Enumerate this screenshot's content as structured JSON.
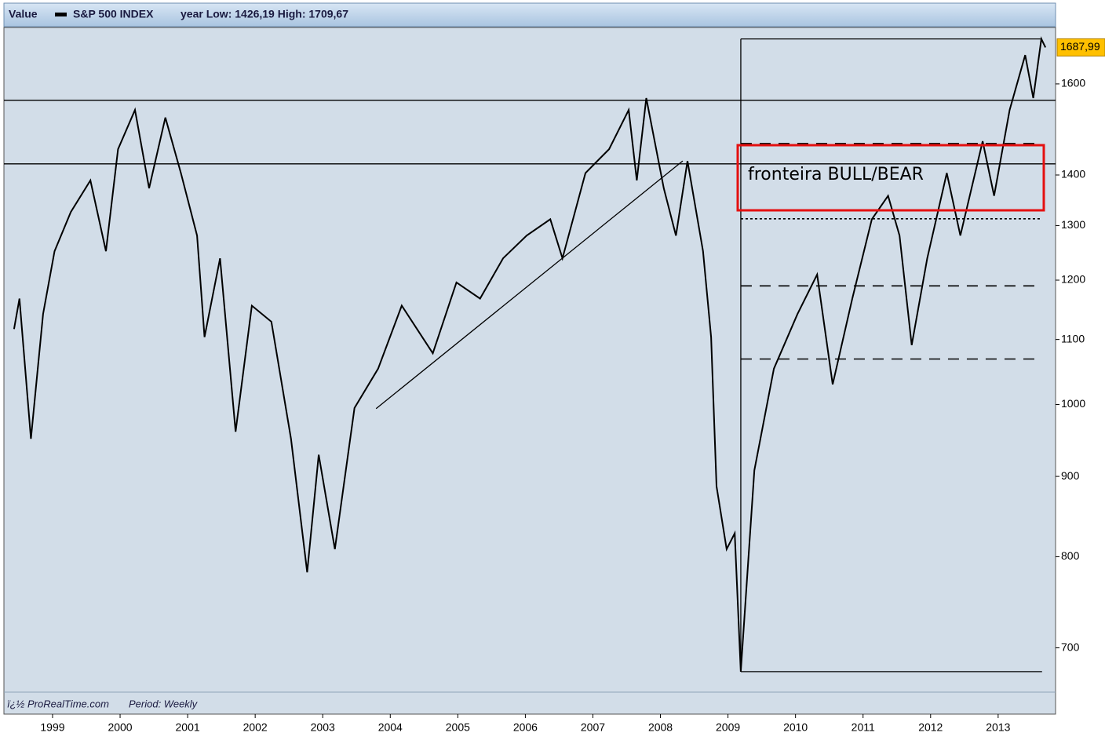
{
  "chart_data": {
    "type": "line",
    "header_label": "Value",
    "subtitle": "year Low: 1426,19 High: 1709,67",
    "footer": "ï¿½ ProRealTime.com",
    "period": "Period: Weekly",
    "annotation": "fronteira BULL/BEAR",
    "x": [
      1998.43,
      1998.51,
      1998.68,
      1998.86,
      1999.03,
      1999.27,
      1999.56,
      1999.79,
      1999.97,
      2000.22,
      2000.43,
      2000.67,
      2000.9,
      2001.14,
      2001.25,
      2001.48,
      2001.71,
      2001.95,
      2002.24,
      2002.53,
      2002.77,
      2002.94,
      2003.18,
      2003.47,
      2003.82,
      2004.17,
      2004.63,
      2004.98,
      2005.33,
      2005.67,
      2006.02,
      2006.37,
      2006.55,
      2006.89,
      2007.24,
      2007.53,
      2007.65,
      2007.79,
      2008.05,
      2008.23,
      2008.4,
      2008.63,
      2008.75,
      2008.83,
      2008.98,
      2009.1,
      2009.19,
      2009.39,
      2009.68,
      2010.03,
      2010.32,
      2010.55,
      2010.84,
      2011.13,
      2011.37,
      2011.54,
      2011.72,
      2011.95,
      2012.24,
      2012.44,
      2012.77,
      2012.94,
      2013.17,
      2013.4,
      2013.52,
      2013.64,
      2013.7
    ],
    "series": [
      {
        "name": "S&P 500 INDEX",
        "color": "#000000",
        "values": [
          1117,
          1168,
          951,
          1142,
          1252,
          1326,
          1389,
          1252,
          1454,
          1540,
          1373,
          1523,
          1404,
          1281,
          1104,
          1239,
          961,
          1156,
          1129,
          951,
          782,
          929,
          809,
          995,
          1054,
          1156,
          1078,
          1196,
          1168,
          1239,
          1281,
          1312,
          1239,
          1404,
          1454,
          1540,
          1389,
          1567,
          1373,
          1281,
          1429,
          1252,
          1104,
          887,
          809,
          828,
          676,
          908,
          1054,
          1142,
          1210,
          1030,
          1168,
          1312,
          1358,
          1281,
          1091,
          1239,
          1404,
          1281,
          1471,
          1358,
          1540,
          1669,
          1567,
          1709,
          1688
        ]
      }
    ],
    "last_price": {
      "value": 1687.99,
      "label": "1687,99"
    },
    "segments": [
      {
        "x": [
          1998.28,
          2013.85
        ],
        "y": [
          1562,
          1562
        ],
        "dash": "solid"
      },
      {
        "x": [
          1998.28,
          2013.85
        ],
        "y": [
          1423,
          1423
        ],
        "dash": "solid"
      },
      {
        "x": [
          2009.19,
          2013.65
        ],
        "y": [
          1709,
          1709
        ],
        "dash": "solid"
      },
      {
        "x": [
          2009.19,
          2013.65
        ],
        "y": [
          676,
          676
        ],
        "dash": "solid"
      },
      {
        "x": [
          2009.19,
          2009.19
        ],
        "y": [
          676,
          1709
        ],
        "dash": "solid"
      },
      {
        "x": [
          2003.79,
          2008.33
        ],
        "y": [
          994,
          1429
        ],
        "dash": "solid"
      },
      {
        "x": [
          2009.19,
          2013.65
        ],
        "y": [
          1466,
          1466
        ],
        "dash": "dashed"
      },
      {
        "x": [
          2009.19,
          2013.65
        ],
        "y": [
          1313,
          1313
        ],
        "dash": "dotted"
      },
      {
        "x": [
          2009.19,
          2013.56
        ],
        "y": [
          1190,
          1190
        ],
        "dash": "dashed"
      },
      {
        "x": [
          2009.19,
          2013.56
        ],
        "y": [
          1069,
          1069
        ],
        "dash": "dashed"
      }
    ],
    "xlim": [
      1998.28,
      2013.85
    ],
    "xticks": [
      1999,
      2000,
      2001,
      2002,
      2003,
      2004,
      2005,
      2006,
      2007,
      2008,
      2009,
      2010,
      2011,
      2012,
      2013
    ],
    "ylim": [
      656,
      1738
    ],
    "yticks": [
      700,
      800,
      900,
      1000,
      1100,
      1200,
      1300,
      1400,
      1600
    ],
    "log_scale": true
  }
}
